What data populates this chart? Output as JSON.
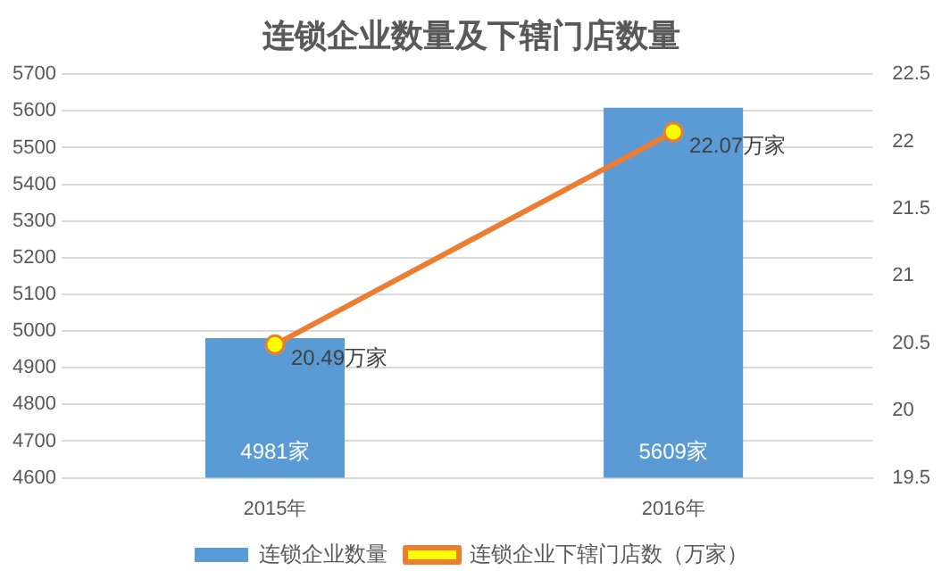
{
  "chart_data": {
    "type": "bar",
    "title": "连锁企业数量及下辖门店数量",
    "categories": [
      "2015年",
      "2016年"
    ],
    "series": [
      {
        "name": "连锁企业数量",
        "color": "#5b9bd5",
        "values": [
          4981,
          5609
        ],
        "value_labels": [
          "4981家",
          "5609家"
        ]
      },
      {
        "name": "连锁企业下辖门店数（万家）",
        "type": "line",
        "axis": "y2",
        "color": "#ed7d31",
        "colors": [
          "#ffff00",
          "#ffff00"
        ],
        "values": [
          20.49,
          22.07
        ],
        "value_labels": [
          "20.49万家",
          "22.07万家"
        ]
      }
    ],
    "ylim": [
      4600,
      5700
    ],
    "yticks": [
      4600,
      4700,
      4800,
      4900,
      5000,
      5100,
      5200,
      5300,
      5400,
      5500,
      5600,
      5700
    ],
    "y2lim": [
      19.5,
      22.5
    ],
    "y2ticks": [
      19.5,
      20,
      20.5,
      21,
      21.5,
      22,
      22.5
    ],
    "grid": "y",
    "legend": "bottom",
    "marker": "circle"
  }
}
